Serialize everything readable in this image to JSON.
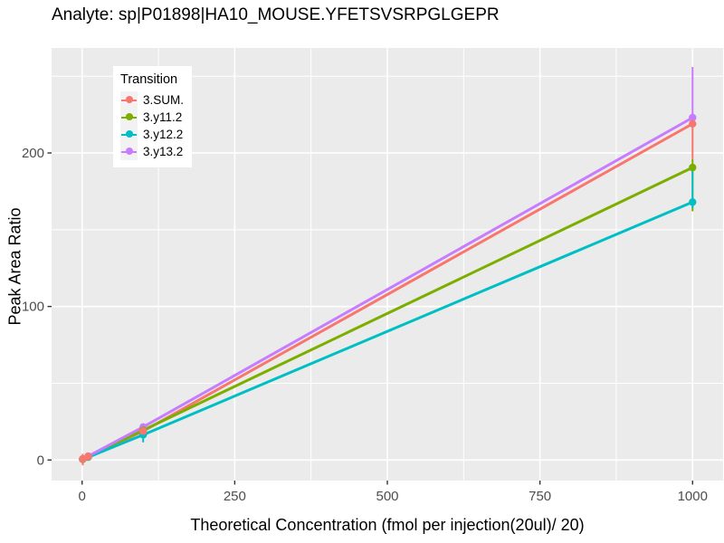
{
  "title": "Analyte: sp|P01898|HA10_MOUSE.YFETSVSRPGLGEPR",
  "legend": {
    "title": "Transition",
    "entries": [
      {
        "label": "3.SUM.",
        "color": "#F8766D"
      },
      {
        "label": "3.y11.2",
        "color": "#7CAE00"
      },
      {
        "label": "3.y12.2",
        "color": "#00BFC4"
      },
      {
        "label": "3.y13.2",
        "color": "#C77CFF"
      }
    ]
  },
  "chart_data": {
    "type": "line",
    "title": "Analyte: sp|P01898|HA10_MOUSE.YFETSVSRPGLGEPR",
    "xlabel": "Theoretical Concentration (fmol per injection(20ul)/ 20)",
    "ylabel": "Peak Area Ratio",
    "x_ticks": [
      0,
      250,
      500,
      750,
      1000
    ],
    "y_ticks": [
      0,
      100,
      200
    ],
    "x_minor": [
      125,
      375,
      625,
      875
    ],
    "y_minor": [
      50,
      150,
      250
    ],
    "xlim": [
      -50,
      1050
    ],
    "ylim": [
      -13.4,
      268.4
    ],
    "grid": true,
    "legend_position": "inside-top-left",
    "panel_bg": "#EBEBEB",
    "grid_color": "#FFFFFF",
    "tick_color": "#333333",
    "tick_label_color": "#4D4D4D",
    "series": [
      {
        "name": "3.SUM.",
        "color": "#F8766D",
        "points": [
          {
            "x": 1,
            "y": 0.6,
            "ymin": -3.5,
            "ymax": 4
          },
          {
            "x": 10,
            "y": 2.3
          },
          {
            "x": 100,
            "y": 18.8
          },
          {
            "x": 1000,
            "y": 219,
            "ymin": 196,
            "ymax": 223
          }
        ]
      },
      {
        "name": "3.y11.2",
        "color": "#7CAE00",
        "points": [
          {
            "x": 1,
            "y": 0.5
          },
          {
            "x": 10,
            "y": 2.1
          },
          {
            "x": 100,
            "y": 19.4
          },
          {
            "x": 1000,
            "y": 190.5,
            "ymin": 162,
            "ymax": 196
          }
        ]
      },
      {
        "name": "3.y12.2",
        "color": "#00BFC4",
        "points": [
          {
            "x": 1,
            "y": 0.4
          },
          {
            "x": 10,
            "y": 1.8
          },
          {
            "x": 100,
            "y": 16.4,
            "ymin": 11.5,
            "ymax": 19
          },
          {
            "x": 1000,
            "y": 168,
            "ymin": 164,
            "ymax": 190
          }
        ]
      },
      {
        "name": "3.y13.2",
        "color": "#C77CFF",
        "points": [
          {
            "x": 1,
            "y": 0.6
          },
          {
            "x": 10,
            "y": 2.5
          },
          {
            "x": 100,
            "y": 21.5
          },
          {
            "x": 1000,
            "y": 223,
            "ymin": 218,
            "ymax": 256
          }
        ]
      }
    ]
  }
}
